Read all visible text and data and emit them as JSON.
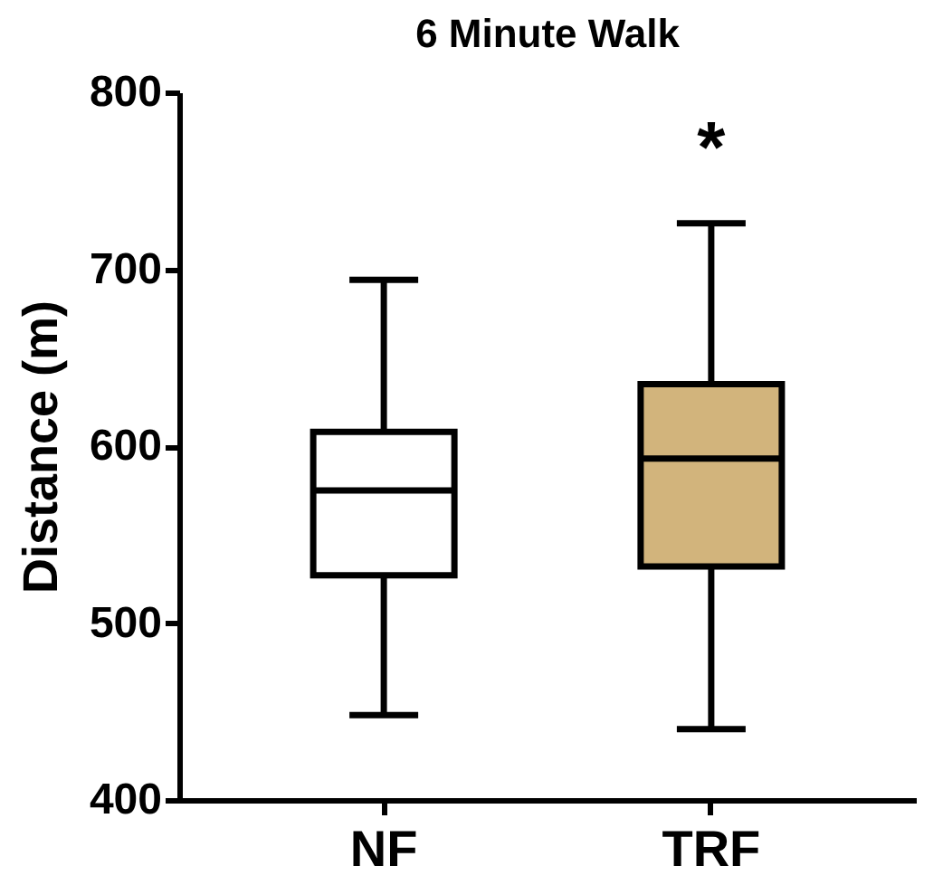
{
  "chart_data": {
    "type": "box",
    "title": "6 Minute Walk",
    "ylabel": "Distance (m)",
    "categories": [
      "NF",
      "TRF"
    ],
    "boxes": [
      {
        "low": 448,
        "q1": 527,
        "median": 575,
        "q3": 608,
        "high": 694
      },
      {
        "low": 440,
        "q1": 532,
        "median": 593,
        "q3": 635,
        "high": 726
      }
    ],
    "colors": [
      "#ffffff",
      "#d2b47c"
    ],
    "ylim": [
      400,
      800
    ],
    "yticks": [
      400,
      500,
      600,
      700,
      800
    ],
    "annotations": [
      "*"
    ],
    "grid": false,
    "legend": false
  }
}
